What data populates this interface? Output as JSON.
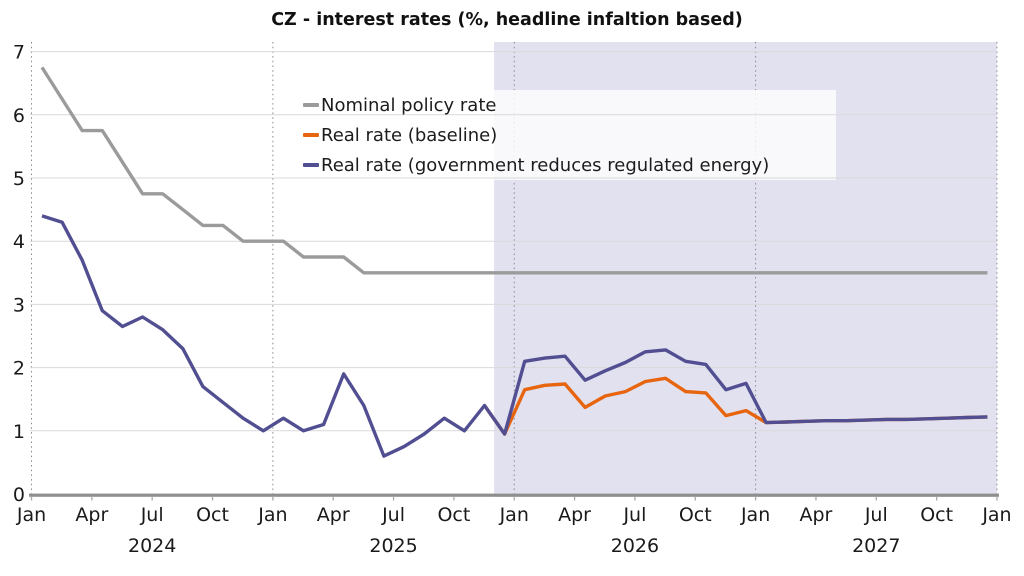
{
  "title": "CZ - interest rates (%, headline infaltion based)",
  "colors": {
    "background": "#ffffff",
    "forecast_shading": "#e2e1f0",
    "gridline": "#d9d9d9",
    "axis": "#8f8f8f",
    "dotted_line": "#8a8a8a",
    "tick_mark": "#a9a9a9",
    "text": "#1a1a1a",
    "legend_box": "rgba(255,255,255,0.8)"
  },
  "chart_data": {
    "type": "line",
    "title": "CZ - interest rates (%, headline infaltion based)",
    "frequency": "monthly",
    "start": "2024-01",
    "x_tick_labels": [
      "Jan",
      "Apr",
      "Jul",
      "Oct",
      "Jan",
      "Apr",
      "Jul",
      "Oct",
      "Jan",
      "Apr",
      "Jul",
      "Oct",
      "Jan",
      "Apr",
      "Jul",
      "Oct",
      "Jan"
    ],
    "year_labels": [
      "2024",
      "2025",
      "2026",
      "2027"
    ],
    "y_ticks": [
      0,
      1,
      2,
      3,
      4,
      5,
      6,
      7
    ],
    "ylim": [
      0,
      7.15
    ],
    "grid": true,
    "legend_position": "upper center",
    "forecast_start_month": 23,
    "dotted_vlines_months": [
      0,
      12,
      24,
      36,
      48
    ],
    "series": [
      {
        "id": "nominal",
        "name": "Nominal policy rate",
        "color": "#9b9b9b",
        "values": [
          6.75,
          6.25,
          5.75,
          5.75,
          5.25,
          4.75,
          4.75,
          4.5,
          4.25,
          4.25,
          4.0,
          4.0,
          4.0,
          3.75,
          3.75,
          3.75,
          3.5,
          3.5,
          3.5,
          3.5,
          3.5,
          3.5,
          3.5,
          3.5,
          3.5,
          3.5,
          3.5,
          3.5,
          3.5,
          3.5,
          3.5,
          3.5,
          3.5,
          3.5,
          3.5,
          3.5,
          3.5,
          3.5,
          3.5,
          3.5,
          3.5,
          3.5,
          3.5,
          3.5,
          3.5,
          3.5,
          3.5,
          3.5
        ]
      },
      {
        "id": "baseline",
        "name": "Real rate (baseline)",
        "color": "#e8650f",
        "values": [
          null,
          null,
          null,
          null,
          null,
          null,
          null,
          null,
          null,
          null,
          null,
          null,
          null,
          null,
          null,
          null,
          null,
          null,
          null,
          null,
          null,
          null,
          1.4,
          0.95,
          1.65,
          1.72,
          1.74,
          1.37,
          1.55,
          1.62,
          1.78,
          1.83,
          1.62,
          1.6,
          1.24,
          1.32,
          1.13,
          1.14,
          1.15,
          1.16,
          1.16,
          1.17,
          1.18,
          1.18,
          1.19,
          1.2,
          1.21,
          1.22
        ]
      },
      {
        "id": "gov",
        "name": "Real rate (government reduces regulated energy)",
        "color": "#514f91",
        "values": [
          4.4,
          4.3,
          3.7,
          2.9,
          2.65,
          2.8,
          2.6,
          2.3,
          1.7,
          1.45,
          1.2,
          1.0,
          1.2,
          1.0,
          1.1,
          1.9,
          1.4,
          0.6,
          0.75,
          0.95,
          1.2,
          1.0,
          1.4,
          0.95,
          2.1,
          2.15,
          2.18,
          1.8,
          1.95,
          2.08,
          2.25,
          2.28,
          2.1,
          2.05,
          1.65,
          1.75,
          1.13,
          1.14,
          1.15,
          1.16,
          1.16,
          1.17,
          1.18,
          1.18,
          1.19,
          1.2,
          1.21,
          1.22
        ]
      }
    ]
  }
}
